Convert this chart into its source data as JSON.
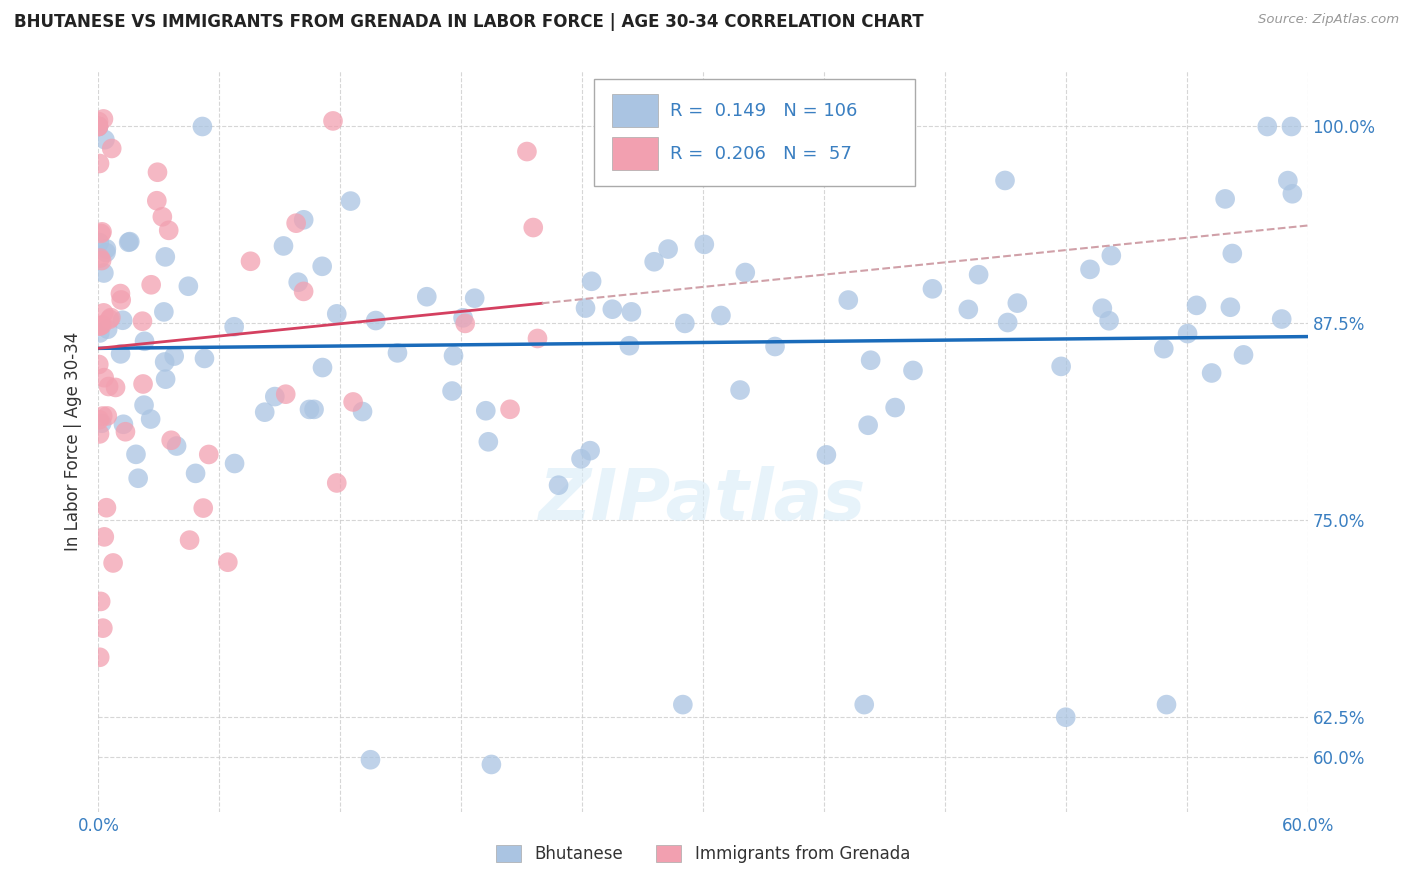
{
  "title": "BHUTANESE VS IMMIGRANTS FROM GRENADA IN LABOR FORCE | AGE 30-34 CORRELATION CHART",
  "source": "Source: ZipAtlas.com",
  "ylabel": "In Labor Force | Age 30-34",
  "xlim": [
    0.0,
    0.6
  ],
  "ylim": [
    0.565,
    1.035
  ],
  "ytick_positions": [
    0.6,
    0.625,
    0.75,
    0.875,
    1.0
  ],
  "ytick_labels": [
    "60.0%",
    "62.5%",
    "75.0%",
    "87.5%",
    "100.0%"
  ],
  "blue_R": 0.149,
  "blue_N": 106,
  "pink_R": 0.206,
  "pink_N": 57,
  "blue_color": "#aac4e2",
  "pink_color": "#f2a0b0",
  "blue_line_color": "#1a6bba",
  "pink_line_color": "#d44060",
  "legend_label_blue": "Bhutanese",
  "legend_label_pink": "Immigrants from Grenada",
  "watermark": "ZIPatlas",
  "background_color": "#ffffff",
  "grid_color": "#cccccc"
}
